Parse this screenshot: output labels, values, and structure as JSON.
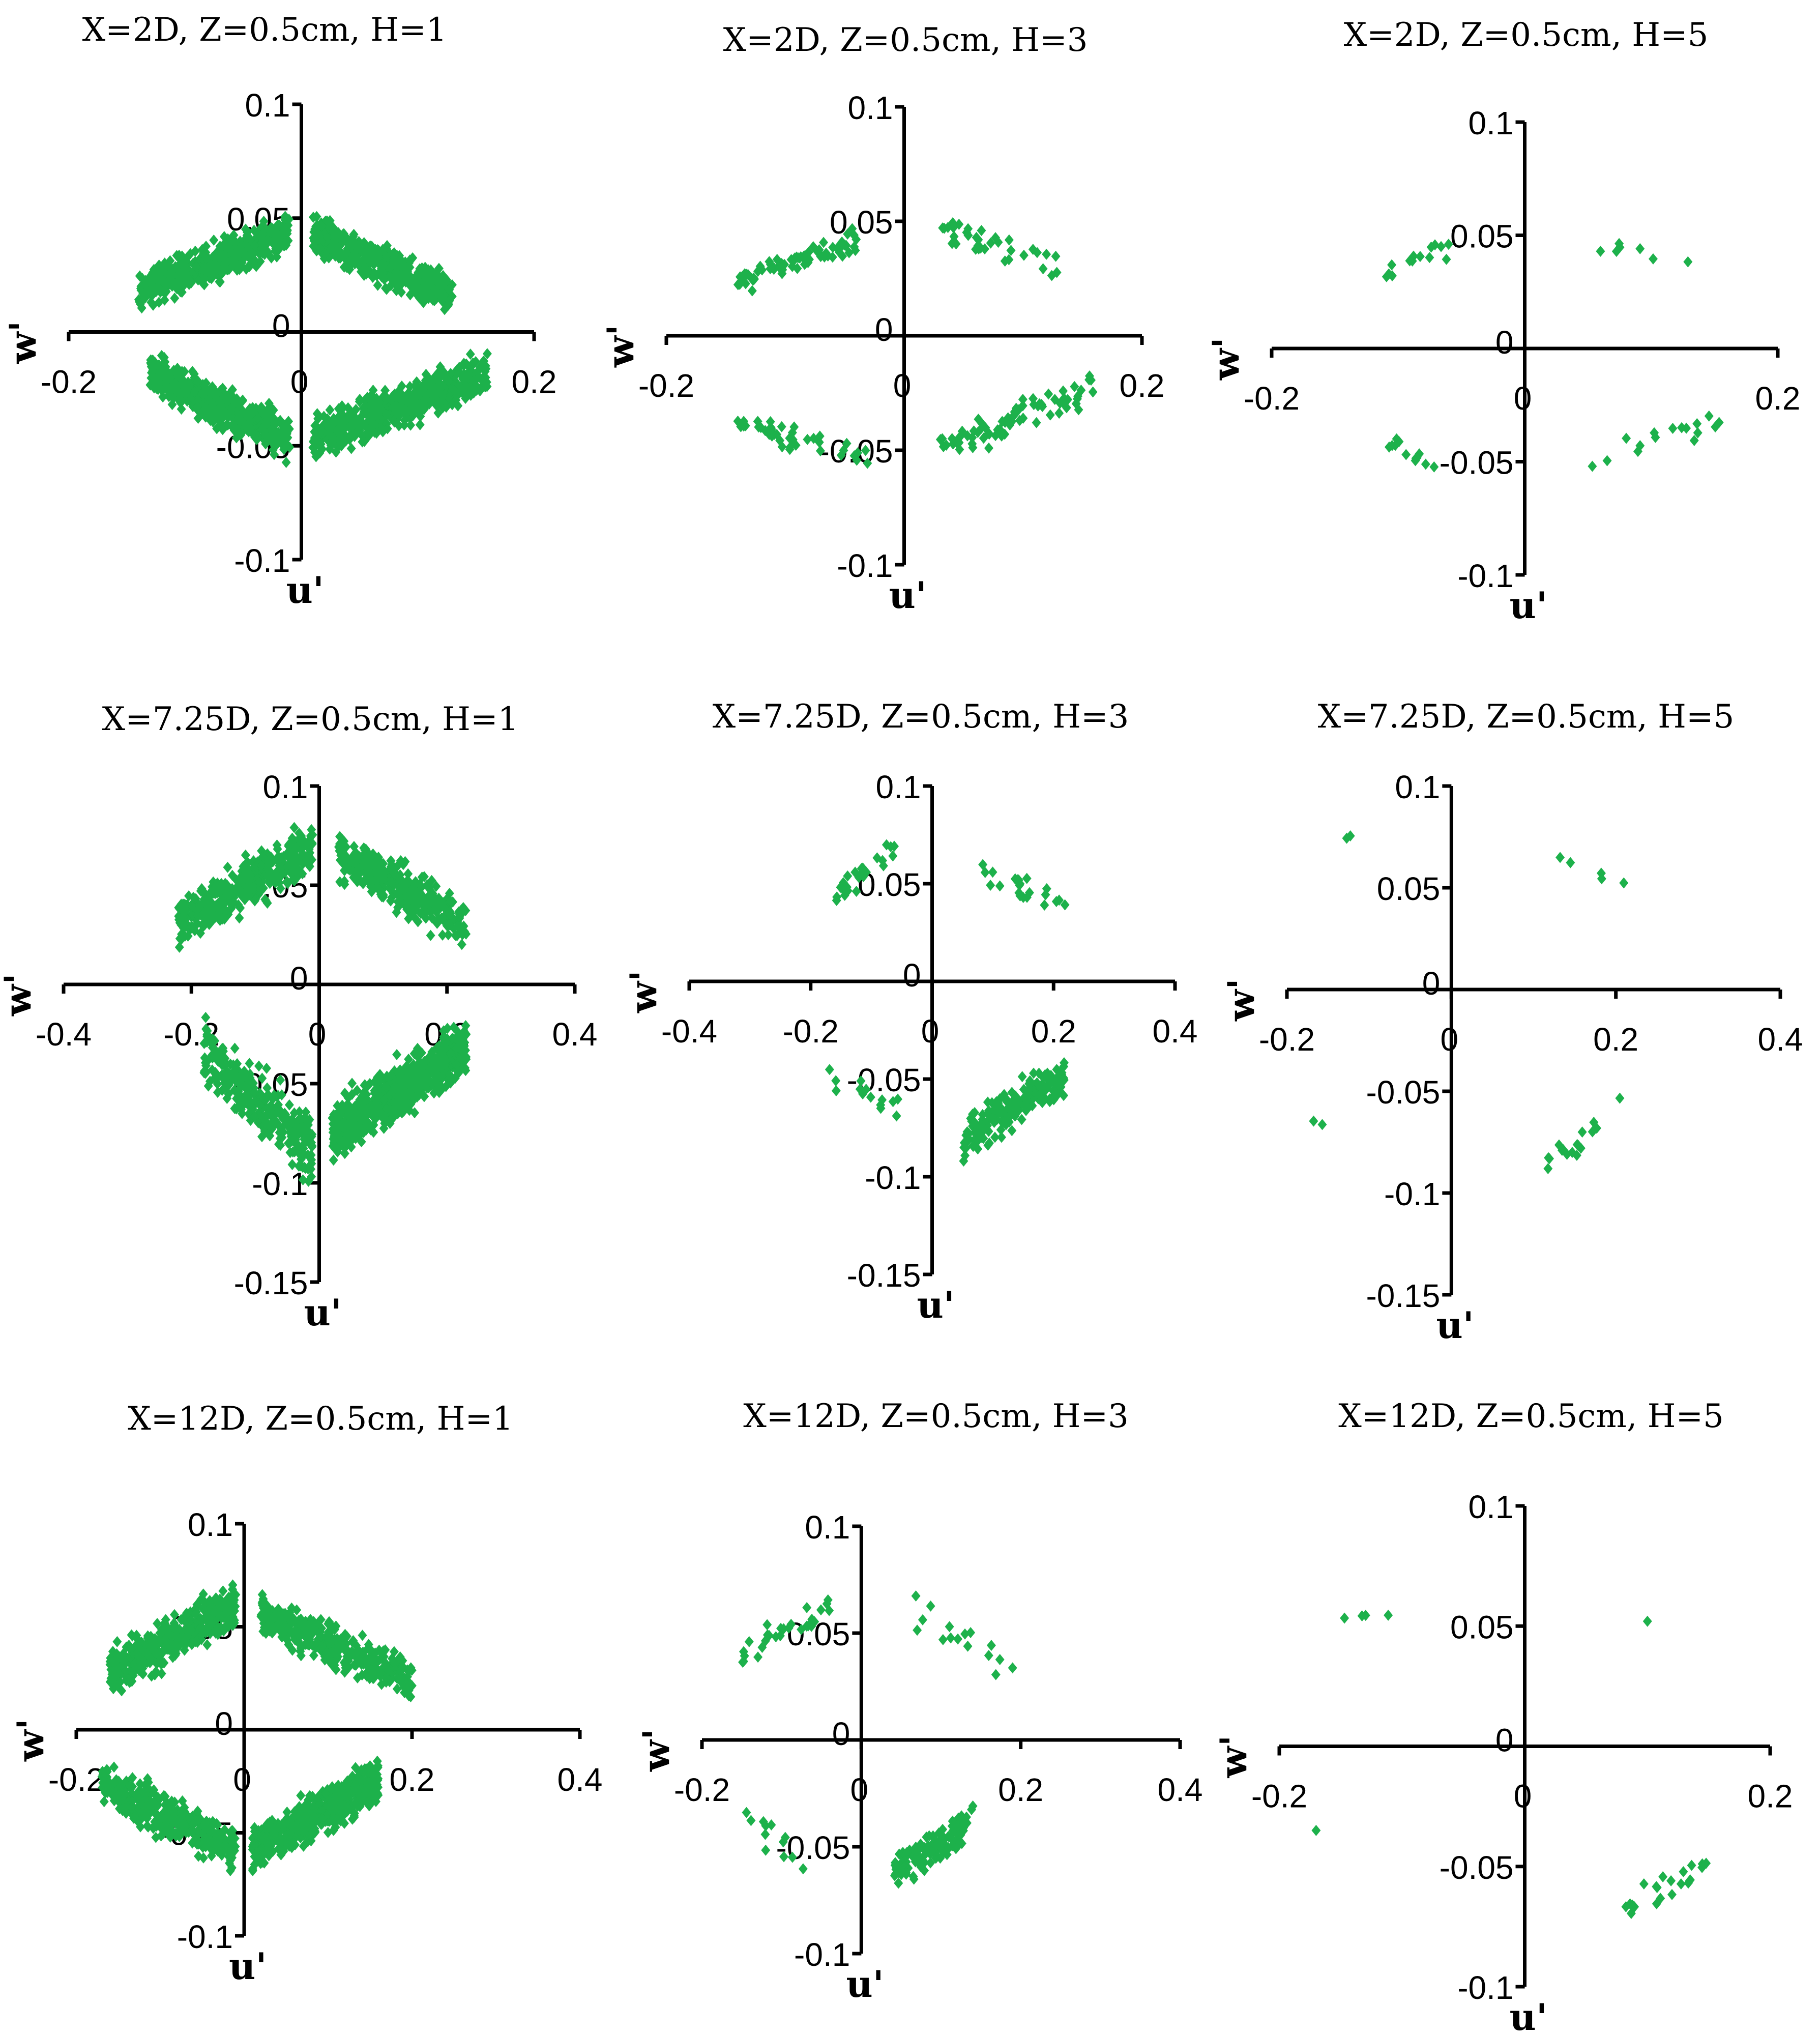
{
  "chart_data": [
    {
      "type": "scatter",
      "title": "X=2D, Z=0.5cm, H=1",
      "xlabel": "u'",
      "ylabel": "w'",
      "xlim": [
        -0.2,
        0.2
      ],
      "ylim": [
        -0.1,
        0.1
      ],
      "x_ticks": [
        "-0.2",
        "0",
        "0.2"
      ],
      "y_ticks": [
        "0.1",
        "0.05",
        "0",
        "-0.05",
        "-0.1"
      ],
      "color": "#1DB14B",
      "clusters": [
        {
          "x": [
            -0.14,
            -0.01
          ],
          "y": [
            0.005,
            0.057
          ],
          "dir": 1,
          "n": 500
        },
        {
          "x": [
            0.01,
            0.13
          ],
          "y": [
            0.003,
            0.057
          ],
          "dir": -1,
          "n": 500
        },
        {
          "x": [
            -0.13,
            -0.01
          ],
          "y": [
            -0.062,
            -0.003
          ],
          "dir": -1,
          "n": 500
        },
        {
          "x": [
            0.01,
            0.16
          ],
          "y": [
            -0.062,
            -0.003
          ],
          "dir": 1,
          "n": 500
        }
      ]
    },
    {
      "type": "scatter",
      "title": "X=2D, Z=0.5cm, H=3",
      "xlabel": "u'",
      "ylabel": "w'",
      "xlim": [
        -0.2,
        0.2
      ],
      "ylim": [
        -0.1,
        0.1
      ],
      "x_ticks": [
        "-0.2",
        "0",
        "0.2"
      ],
      "y_ticks": [
        "0.1",
        "0.05",
        "0",
        "-0.05",
        "-0.1"
      ],
      "color": "#1DB14B",
      "clusters": [
        {
          "x": [
            -0.14,
            -0.04
          ],
          "y": [
            0.015,
            0.05
          ],
          "dir": 1,
          "n": 75
        },
        {
          "x": [
            0.03,
            0.13
          ],
          "y": [
            0.02,
            0.057
          ],
          "dir": -1,
          "n": 35
        },
        {
          "x": [
            -0.14,
            -0.03
          ],
          "y": [
            -0.062,
            -0.03
          ],
          "dir": -1,
          "n": 40
        },
        {
          "x": [
            0.03,
            0.16
          ],
          "y": [
            -0.062,
            -0.01
          ],
          "dir": 1,
          "n": 75
        }
      ]
    },
    {
      "type": "scatter",
      "title": "X=2D, Z=0.5cm, H=5",
      "xlabel": "u'",
      "ylabel": "w'",
      "xlim": [
        -0.2,
        0.2
      ],
      "ylim": [
        -0.1,
        0.1
      ],
      "x_ticks": [
        "-0.2",
        "0",
        "0.2"
      ],
      "y_ticks": [
        "0.1",
        "0.05",
        "0",
        "-0.05",
        "-0.1"
      ],
      "color": "#1DB14B",
      "clusters": [
        {
          "x": [
            -0.13,
            -0.06
          ],
          "y": [
            0.018,
            0.055
          ],
          "dir": 1,
          "n": 14
        },
        {
          "x": [
            0.04,
            0.13
          ],
          "y": [
            0.03,
            0.055
          ],
          "dir": -1,
          "n": 7
        },
        {
          "x": [
            -0.11,
            -0.07
          ],
          "y": [
            -0.062,
            -0.032
          ],
          "dir": -1,
          "n": 12
        },
        {
          "x": [
            0.05,
            0.16
          ],
          "y": [
            -0.062,
            -0.02
          ],
          "dir": 1,
          "n": 16
        }
      ]
    },
    {
      "type": "scatter",
      "title": "X=7.25D, Z=0.5cm, H=1",
      "xlabel": "u'",
      "ylabel": "w'",
      "xlim": [
        -0.4,
        0.4
      ],
      "ylim": [
        -0.15,
        0.1
      ],
      "x_ticks": [
        "-0.4",
        "-0.2",
        "0",
        "0.2",
        "0.4"
      ],
      "y_ticks": [
        "0.1",
        "0.05",
        "0",
        "-0.05",
        "-0.1",
        "-0.15"
      ],
      "color": "#1DB14B",
      "clusters": [
        {
          "x": [
            -0.22,
            -0.01
          ],
          "y": [
            0.01,
            0.09
          ],
          "dir": 1,
          "n": 400
        },
        {
          "x": [
            0.03,
            0.23
          ],
          "y": [
            0.01,
            0.086
          ],
          "dir": -1,
          "n": 350
        },
        {
          "x": [
            -0.18,
            -0.01
          ],
          "y": [
            -0.108,
            -0.01
          ],
          "dir": -1,
          "n": 280
        },
        {
          "x": [
            0.02,
            0.23
          ],
          "y": [
            -0.097,
            -0.01
          ],
          "dir": 1,
          "n": 700
        }
      ]
    },
    {
      "type": "scatter",
      "title": "X=7.25D, Z=0.5cm, H=3",
      "xlabel": "u'",
      "ylabel": "w'",
      "xlim": [
        -0.4,
        0.4
      ],
      "ylim": [
        -0.15,
        0.1
      ],
      "x_ticks": [
        "-0.4",
        "-0.2",
        "0",
        "0.2",
        "0.4"
      ],
      "y_ticks": [
        "0.1",
        "0.05",
        "0",
        "-0.05",
        "-0.1",
        "-0.15"
      ],
      "color": "#1DB14B",
      "clusters": [
        {
          "x": [
            -0.16,
            -0.06
          ],
          "y": [
            0.03,
            0.085
          ],
          "dir": 1,
          "n": 25
        },
        {
          "x": [
            0.08,
            0.22
          ],
          "y": [
            0.025,
            0.07
          ],
          "dir": -1,
          "n": 22
        },
        {
          "x": [
            -0.2,
            -0.05
          ],
          "y": [
            -0.08,
            -0.03
          ],
          "dir": -1,
          "n": 14
        },
        {
          "x": [
            0.05,
            0.22
          ],
          "y": [
            -0.098,
            -0.03
          ],
          "dir": 1,
          "n": 180
        }
      ]
    },
    {
      "type": "scatter",
      "title": "X=7.25D, Z=0.5cm, H=5",
      "xlabel": "u'",
      "ylabel": "w'",
      "xlim": [
        -0.2,
        0.4
      ],
      "ylim": [
        -0.15,
        0.1
      ],
      "x_ticks": [
        "-0.2",
        "0",
        "0.2",
        "0.4"
      ],
      "y_ticks": [
        "0.1",
        "0.05",
        "0",
        "-0.05",
        "-0.1",
        "-0.15"
      ],
      "color": "#1DB14B",
      "clusters": [
        {
          "x": [
            -0.13,
            -0.11
          ],
          "y": [
            0.072,
            0.08
          ],
          "dir": 1,
          "n": 2
        },
        {
          "x": [
            0.11,
            0.22
          ],
          "y": [
            0.045,
            0.072
          ],
          "dir": -1,
          "n": 5
        },
        {
          "x": [
            -0.17,
            -0.15
          ],
          "y": [
            -0.07,
            -0.062
          ],
          "dir": -1,
          "n": 2
        },
        {
          "x": [
            0.11,
            0.21
          ],
          "y": [
            -0.095,
            -0.047
          ],
          "dir": 1,
          "n": 18
        }
      ]
    },
    {
      "type": "scatter",
      "title": "X=12D, Z=0.5cm, H=1",
      "xlabel": "u'",
      "ylabel": "w'",
      "xlim": [
        -0.2,
        0.4
      ],
      "ylim": [
        -0.1,
        0.1
      ],
      "x_ticks": [
        "-0.2",
        "0",
        "0.2",
        "0.4"
      ],
      "y_ticks": [
        "0.1",
        "0.05",
        "0",
        "-0.05",
        "-0.1"
      ],
      "color": "#1DB14B",
      "clusters": [
        {
          "x": [
            -0.16,
            -0.01
          ],
          "y": [
            0.01,
            0.078
          ],
          "dir": 1,
          "n": 450
        },
        {
          "x": [
            0.02,
            0.2
          ],
          "y": [
            0.008,
            0.072
          ],
          "dir": -1,
          "n": 400
        },
        {
          "x": [
            -0.17,
            -0.01
          ],
          "y": [
            -0.075,
            -0.01
          ],
          "dir": -1,
          "n": 350
        },
        {
          "x": [
            0.01,
            0.16
          ],
          "y": [
            -0.075,
            -0.008
          ],
          "dir": 1,
          "n": 550
        }
      ]
    },
    {
      "type": "scatter",
      "title": "X=12D, Z=0.5cm, H=3",
      "xlabel": "u'",
      "ylabel": "w'",
      "xlim": [
        -0.2,
        0.4
      ],
      "ylim": [
        -0.1,
        0.1
      ],
      "x_ticks": [
        "-0.2",
        "0",
        "0.2",
        "0.4"
      ],
      "y_ticks": [
        "0.1",
        "0.05",
        "0",
        "-0.05",
        "-0.1"
      ],
      "color": "#1DB14B",
      "clusters": [
        {
          "x": [
            -0.15,
            -0.04
          ],
          "y": [
            0.028,
            0.075
          ],
          "dir": 1,
          "n": 28
        },
        {
          "x": [
            0.06,
            0.19
          ],
          "y": [
            0.015,
            0.076
          ],
          "dir": -1,
          "n": 16
        },
        {
          "x": [
            -0.16,
            -0.06
          ],
          "y": [
            -0.072,
            -0.02
          ],
          "dir": -1,
          "n": 12
        },
        {
          "x": [
            0.04,
            0.14
          ],
          "y": [
            -0.075,
            -0.025
          ],
          "dir": 1,
          "n": 110
        }
      ]
    },
    {
      "type": "scatter",
      "title": "X=12D, Z=0.5cm, H=5",
      "xlabel": "u'",
      "ylabel": "w'",
      "xlim": [
        -0.2,
        0.2
      ],
      "ylim": [
        -0.1,
        0.1
      ],
      "x_ticks": [
        "-0.2",
        "0",
        "0.2"
      ],
      "y_ticks": [
        "0.1",
        "0.05",
        "0",
        "-0.05",
        "-0.1"
      ],
      "color": "#1DB14B",
      "clusters": [
        {
          "x": [
            -0.15,
            -0.09
          ],
          "y": [
            0.052,
            0.058
          ],
          "dir": 1,
          "n": 4
        },
        {
          "x": [
            0.1,
            0.1
          ],
          "y": [
            0.052,
            0.052
          ],
          "dir": -1,
          "n": 1
        },
        {
          "x": [
            -0.17,
            -0.17
          ],
          "y": [
            -0.035,
            -0.035
          ],
          "dir": -1,
          "n": 1
        },
        {
          "x": [
            0.08,
            0.15
          ],
          "y": [
            -0.077,
            -0.04
          ],
          "dir": 1,
          "n": 22
        }
      ]
    }
  ]
}
